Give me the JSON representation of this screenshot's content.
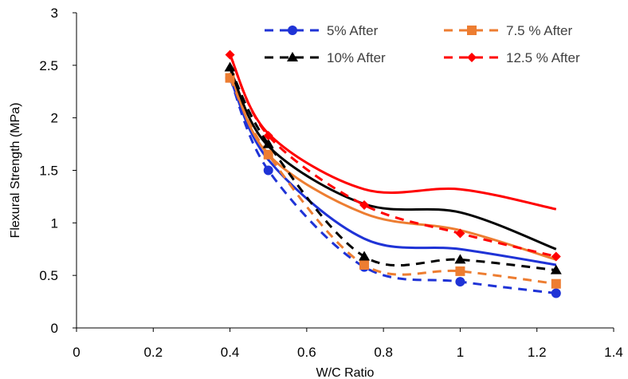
{
  "chart_data": {
    "type": "line",
    "title": "",
    "xlabel": "W/C Ratio",
    "ylabel": "Flexural Strength (MPa)",
    "xlim": [
      0,
      1.4
    ],
    "ylim": [
      0,
      3
    ],
    "x_ticks": [
      "0",
      "0.2",
      "0.4",
      "0.6",
      "0.8",
      "1",
      "1.2",
      "1.4"
    ],
    "y_ticks": [
      "0",
      "0.5",
      "1",
      "1.5",
      "2",
      "2.5",
      "3"
    ],
    "grid": false,
    "legend_position": "top-right",
    "series": [
      {
        "name": "",
        "color": "#1f33d6",
        "dash": "solid",
        "marker": "none",
        "x": [
          0.4,
          0.5,
          0.75,
          1.0,
          1.25
        ],
        "y": [
          2.38,
          1.6,
          0.85,
          0.75,
          0.6
        ]
      },
      {
        "name": "",
        "color": "#ed7d31",
        "dash": "solid",
        "marker": "none",
        "x": [
          0.4,
          0.5,
          0.75,
          1.0,
          1.25
        ],
        "y": [
          2.43,
          1.65,
          1.09,
          0.93,
          0.65
        ]
      },
      {
        "name": "",
        "color": "#000000",
        "dash": "solid",
        "marker": "none",
        "x": [
          0.4,
          0.5,
          0.75,
          1.0,
          1.25
        ],
        "y": [
          2.47,
          1.73,
          1.18,
          1.1,
          0.75
        ]
      },
      {
        "name": "",
        "color": "#ff0000",
        "dash": "solid",
        "marker": "none",
        "x": [
          0.4,
          0.5,
          0.75,
          1.0,
          1.25
        ],
        "y": [
          2.6,
          1.85,
          1.32,
          1.32,
          1.13
        ]
      },
      {
        "name": "5% After",
        "color": "#1f33d6",
        "dash": "dashed",
        "marker": "circle",
        "x": [
          0.4,
          0.5,
          0.75,
          1.0,
          1.25
        ],
        "y": [
          2.38,
          1.5,
          0.58,
          0.44,
          0.33
        ]
      },
      {
        "name": "7.5 % After",
        "color": "#ed7d31",
        "dash": "dashed",
        "marker": "square",
        "x": [
          0.4,
          0.5,
          0.75,
          1.0,
          1.25
        ],
        "y": [
          2.38,
          1.65,
          0.6,
          0.54,
          0.42
        ]
      },
      {
        "name": "10% After",
        "color": "#000000",
        "dash": "dashed",
        "marker": "triangle",
        "x": [
          0.4,
          0.5,
          0.75,
          1.0,
          1.25
        ],
        "y": [
          2.48,
          1.75,
          0.68,
          0.65,
          0.55
        ]
      },
      {
        "name": "12.5 % After",
        "color": "#ff0000",
        "dash": "dashed",
        "marker": "diamond",
        "x": [
          0.4,
          0.5,
          0.75,
          1.0,
          1.25
        ],
        "y": [
          2.6,
          1.83,
          1.17,
          0.9,
          0.68
        ]
      }
    ],
    "legend": [
      {
        "label": "5% After",
        "series": 4
      },
      {
        "label": "7.5 % After",
        "series": 5
      },
      {
        "label": "10% After",
        "series": 6
      },
      {
        "label": "12.5 % After",
        "series": 7
      }
    ]
  }
}
